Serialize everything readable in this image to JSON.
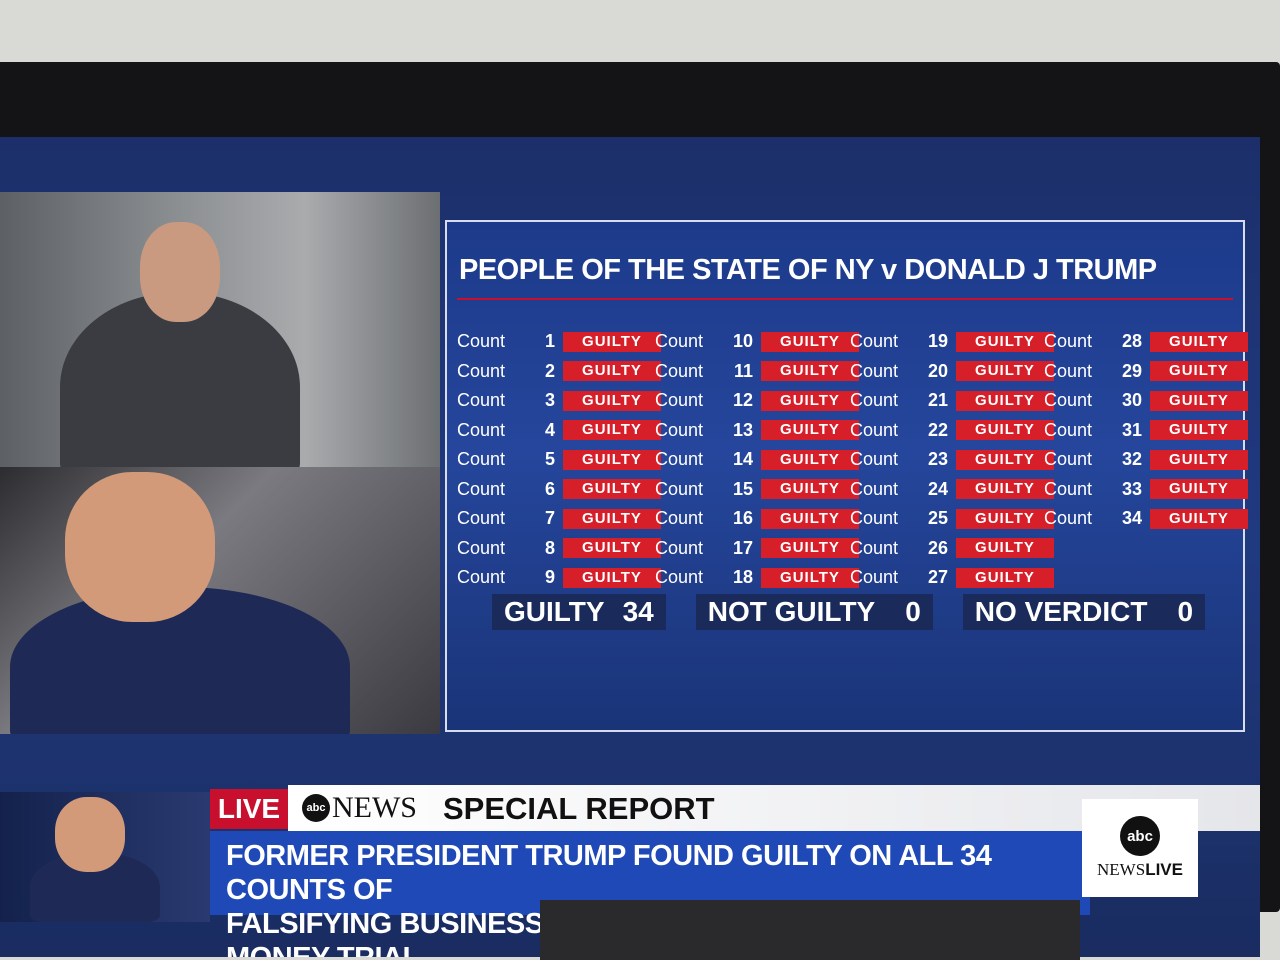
{
  "graphic": {
    "title": "PEOPLE OF THE STATE OF NY v DONALD J TRUMP",
    "count_label": "Count",
    "counts": [
      {
        "number": 1,
        "verdict": "GUILTY"
      },
      {
        "number": 2,
        "verdict": "GUILTY"
      },
      {
        "number": 3,
        "verdict": "GUILTY"
      },
      {
        "number": 4,
        "verdict": "GUILTY"
      },
      {
        "number": 5,
        "verdict": "GUILTY"
      },
      {
        "number": 6,
        "verdict": "GUILTY"
      },
      {
        "number": 7,
        "verdict": "GUILTY"
      },
      {
        "number": 8,
        "verdict": "GUILTY"
      },
      {
        "number": 9,
        "verdict": "GUILTY"
      },
      {
        "number": 10,
        "verdict": "GUILTY"
      },
      {
        "number": 11,
        "verdict": "GUILTY"
      },
      {
        "number": 12,
        "verdict": "GUILTY"
      },
      {
        "number": 13,
        "verdict": "GUILTY"
      },
      {
        "number": 14,
        "verdict": "GUILTY"
      },
      {
        "number": 15,
        "verdict": "GUILTY"
      },
      {
        "number": 16,
        "verdict": "GUILTY"
      },
      {
        "number": 17,
        "verdict": "GUILTY"
      },
      {
        "number": 18,
        "verdict": "GUILTY"
      },
      {
        "number": 19,
        "verdict": "GUILTY"
      },
      {
        "number": 20,
        "verdict": "GUILTY"
      },
      {
        "number": 21,
        "verdict": "GUILTY"
      },
      {
        "number": 22,
        "verdict": "GUILTY"
      },
      {
        "number": 23,
        "verdict": "GUILTY"
      },
      {
        "number": 24,
        "verdict": "GUILTY"
      },
      {
        "number": 25,
        "verdict": "GUILTY"
      },
      {
        "number": 26,
        "verdict": "GUILTY"
      },
      {
        "number": 27,
        "verdict": "GUILTY"
      },
      {
        "number": 28,
        "verdict": "GUILTY"
      },
      {
        "number": 29,
        "verdict": "GUILTY"
      },
      {
        "number": 30,
        "verdict": "GUILTY"
      },
      {
        "number": 31,
        "verdict": "GUILTY"
      },
      {
        "number": 32,
        "verdict": "GUILTY"
      },
      {
        "number": 33,
        "verdict": "GUILTY"
      },
      {
        "number": 34,
        "verdict": "GUILTY"
      }
    ],
    "totals": [
      {
        "label": "GUILTY",
        "value": "34"
      },
      {
        "label": "NOT GUILTY",
        "value": "0"
      },
      {
        "label": "NO VERDICT",
        "value": "0"
      }
    ],
    "verdict_color": "#d71f2a"
  },
  "lower_third": {
    "live": "LIVE",
    "network_logo": "abc",
    "network_word": "NEWS",
    "program": "SPECIAL REPORT",
    "headline_line1": "FORMER PRESIDENT TRUMP FOUND GUILTY ON ALL 34 COUNTS OF",
    "headline_line2": "FALSIFYING BUSINESS RECORDS IN NEW YORK HUSH MONEY TRIAL",
    "bug_logo": "abc",
    "bug_news": "NEWS",
    "bug_live": "LIVE",
    "live_color": "#c8102e",
    "headline_bg": "#1f49b6"
  }
}
